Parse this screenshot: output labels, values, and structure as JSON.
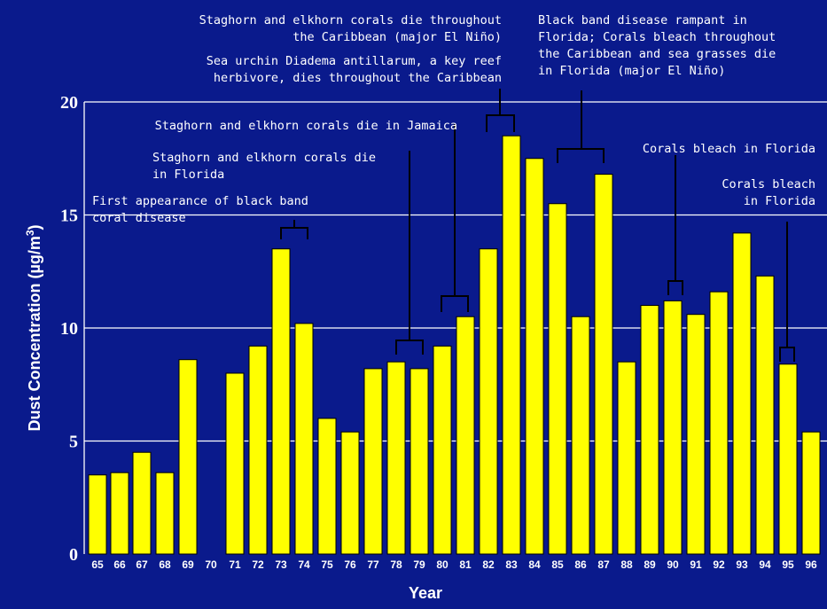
{
  "chart_data": {
    "type": "bar",
    "xlabel": "Year",
    "ylabel": "Dust Concentration (µg/m",
    "ylabel_sup": "3",
    "ylabel_close": ")",
    "ylim": [
      0,
      20
    ],
    "yticks": [
      0,
      5,
      10,
      15,
      20
    ],
    "grid": true,
    "colors": {
      "background": "#0a1a8c",
      "bar": "#ffff00",
      "bar_edge": "#000000",
      "grid": "#ffffff",
      "text": "#ffffff"
    },
    "categories": [
      "65",
      "66",
      "67",
      "68",
      "69",
      "70",
      "71",
      "72",
      "73",
      "74",
      "75",
      "76",
      "77",
      "78",
      "79",
      "80",
      "81",
      "82",
      "83",
      "84",
      "85",
      "86",
      "87",
      "88",
      "89",
      "90",
      "91",
      "92",
      "93",
      "94",
      "95",
      "96"
    ],
    "values": [
      3.5,
      3.6,
      4.5,
      3.6,
      8.6,
      0,
      8.0,
      9.2,
      13.5,
      10.2,
      6.0,
      5.4,
      8.2,
      8.5,
      8.2,
      9.2,
      10.5,
      13.5,
      18.5,
      17.5,
      15.5,
      10.5,
      16.8,
      8.5,
      11.0,
      11.2,
      10.6,
      11.6,
      14.2,
      12.3,
      8.4,
      5.4
    ],
    "annotations": [
      {
        "id": "a74",
        "lines": [
          "First appearance of black band",
          "coral disease"
        ]
      },
      {
        "id": "a79",
        "lines": [
          "Staghorn and elkhorn corals die",
          "in Florida"
        ]
      },
      {
        "id": "a81",
        "lines": [
          "Staghorn and elkhorn corals die in Jamaica"
        ]
      },
      {
        "id": "a83a",
        "lines": [
          "Staghorn and elkhorn corals die throughout",
          "the Caribbean (major El Niño)"
        ]
      },
      {
        "id": "a83b",
        "lines": [
          "Sea urchin Diadema antillarum, a key reef",
          "herbivore, dies throughout the Caribbean"
        ]
      },
      {
        "id": "a87",
        "lines": [
          "Black band disease rampant in",
          "Florida; Corals bleach throughout",
          "the Caribbean and sea grasses die",
          "in Florida (major El Niño)"
        ]
      },
      {
        "id": "a90",
        "lines": [
          "Corals bleach in Florida"
        ]
      },
      {
        "id": "a95",
        "lines": [
          "Corals bleach",
          "in Florida"
        ]
      }
    ]
  }
}
